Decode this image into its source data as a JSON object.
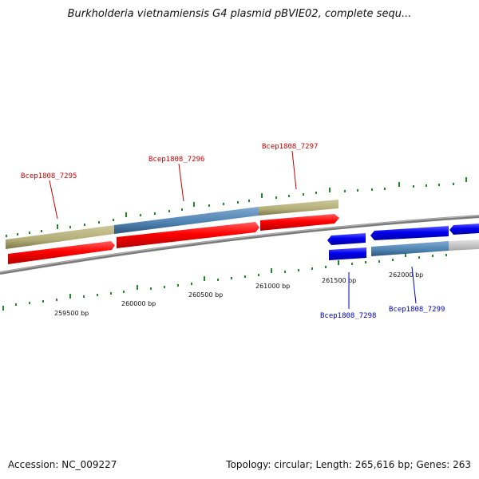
{
  "title": "Burkholderia vietnamiensis G4 plasmid pBVIE02, complete sequ...",
  "footer": {
    "accession": "Accession: NC_009227",
    "summary": "Topology: circular; Length: 265,616 bp; Genes: 263"
  },
  "scale_labels": [
    "259500 bp",
    "260000 bp",
    "260500 bp",
    "261000 bp",
    "261500 bp",
    "262000 bp"
  ],
  "genes": {
    "g7295": "Bcep1808_7295",
    "g7296": "Bcep1808_7296",
    "g7297": "Bcep1808_7297",
    "g7298": "Bcep1808_7298",
    "g7299": "Bcep1808_7299"
  },
  "colors": {
    "forward_gene": "#ff0000",
    "reverse_gene": "#0000ee",
    "forward_label": "#cc0000",
    "reverse_label": "#0000cc",
    "tick": "#228b22",
    "backbone": "#888888"
  }
}
